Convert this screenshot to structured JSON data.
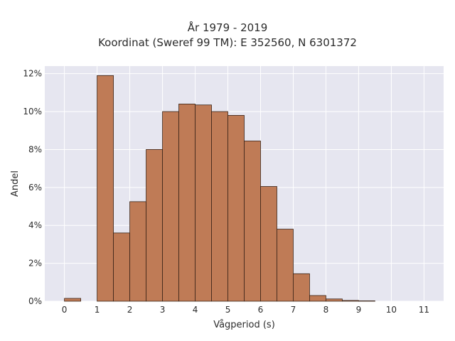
{
  "chart_data": {
    "type": "bar",
    "title": "År 1979 - 2019",
    "subtitle": "Koordinat (Sweref 99 TM): E 352560, N 6301372",
    "xlabel": "Vågperiod (s)",
    "ylabel": "Andel",
    "xlim": [
      -0.6,
      11.6
    ],
    "ylim": [
      0,
      12.4
    ],
    "x_ticks": [
      0,
      1,
      2,
      3,
      4,
      5,
      6,
      7,
      8,
      9,
      10,
      11
    ],
    "y_ticks": [
      0,
      2,
      4,
      6,
      8,
      10,
      12
    ],
    "y_tick_labels": [
      "0%",
      "2%",
      "4%",
      "6%",
      "8%",
      "10%",
      "12%"
    ],
    "bin_width": 0.5,
    "bins": [
      {
        "start": 0.0,
        "value": 0.15
      },
      {
        "start": 0.5,
        "value": 0.0
      },
      {
        "start": 1.0,
        "value": 11.9
      },
      {
        "start": 1.5,
        "value": 3.6
      },
      {
        "start": 2.0,
        "value": 5.25
      },
      {
        "start": 2.5,
        "value": 8.0
      },
      {
        "start": 3.0,
        "value": 10.0
      },
      {
        "start": 3.5,
        "value": 10.4
      },
      {
        "start": 4.0,
        "value": 10.35
      },
      {
        "start": 4.5,
        "value": 10.0
      },
      {
        "start": 5.0,
        "value": 9.8
      },
      {
        "start": 5.5,
        "value": 8.45
      },
      {
        "start": 6.0,
        "value": 6.05
      },
      {
        "start": 6.5,
        "value": 3.8
      },
      {
        "start": 7.0,
        "value": 1.45
      },
      {
        "start": 7.5,
        "value": 0.3
      },
      {
        "start": 8.0,
        "value": 0.12
      },
      {
        "start": 8.5,
        "value": 0.04
      },
      {
        "start": 9.0,
        "value": 0.02
      }
    ],
    "grid": true,
    "colors": {
      "bar_fill": "#bf7b56",
      "bar_edge": "#3a2418",
      "plot_background": "#e6e6f0",
      "grid": "#ffffff"
    }
  }
}
